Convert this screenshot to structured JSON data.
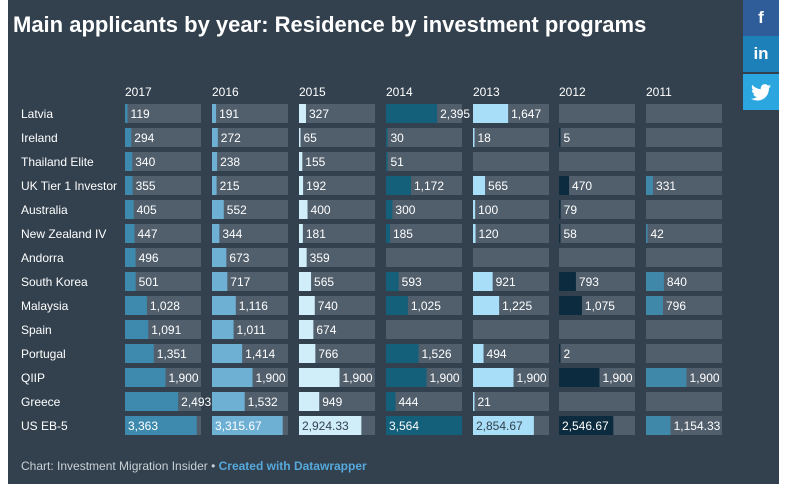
{
  "header": {
    "title": "Main applicants by year: Residence by investment programs"
  },
  "share": {
    "facebook": "f",
    "linkedin": "in"
  },
  "footer": {
    "source_text": "Chart: Investment Migration Insider • ",
    "link_text": "Created with Datawrapper"
  },
  "colors": {
    "background": "#33414e",
    "track": "#515e6b",
    "years": {
      "2017": "#3e8aae",
      "2016": "#6eb0d4",
      "2015": "#cfeefa",
      "2014": "#145f7a",
      "2013": "#a9def8",
      "2012": "#0c2b3e",
      "2011": "#3f88aa"
    }
  },
  "chart_data": {
    "type": "bar",
    "title": "Main applicants by year: Residence by investment programs",
    "orientation": "horizontal",
    "layout": "small-multiples-by-year",
    "xlim": [
      0,
      3564
    ],
    "categories": [
      "Latvia",
      "Ireland",
      "Thailand Elite",
      "UK Tier 1 Investor",
      "Australia",
      "New Zealand IV",
      "Andorra",
      "South Korea",
      "Malaysia",
      "Spain",
      "Portugal",
      "QIIP",
      "Greece",
      "US EB-5"
    ],
    "series": [
      {
        "name": "2017",
        "values": [
          119,
          294,
          340,
          355,
          405,
          447,
          496,
          501,
          1028,
          1091,
          1351,
          1900,
          2493,
          3363
        ],
        "labels": [
          "119",
          "294",
          "340",
          "355",
          "405",
          "447",
          "496",
          "501",
          "1,028",
          "1,091",
          "1,351",
          "1,900",
          "2,493",
          "3,363"
        ]
      },
      {
        "name": "2016",
        "values": [
          191,
          272,
          238,
          215,
          552,
          344,
          673,
          717,
          1116,
          1011,
          1414,
          1900,
          1532,
          3315.67
        ],
        "labels": [
          "191",
          "272",
          "238",
          "215",
          "552",
          "344",
          "673",
          "717",
          "1,116",
          "1,011",
          "1,414",
          "1,900",
          "1,532",
          "3,315.67"
        ]
      },
      {
        "name": "2015",
        "values": [
          327,
          65,
          155,
          192,
          400,
          181,
          359,
          565,
          740,
          674,
          766,
          1900,
          949,
          2924.33
        ],
        "labels": [
          "327",
          "65",
          "155",
          "192",
          "400",
          "181",
          "359",
          "565",
          "740",
          "674",
          "766",
          "1,900",
          "949",
          "2,924.33"
        ]
      },
      {
        "name": "2014",
        "values": [
          2395,
          30,
          51,
          1172,
          300,
          185,
          null,
          593,
          1025,
          null,
          1526,
          1900,
          444,
          3564
        ],
        "labels": [
          "2,395",
          "30",
          "51",
          "1,172",
          "300",
          "185",
          "",
          "593",
          "1,025",
          "",
          "1,526",
          "1,900",
          "444",
          "3,564"
        ]
      },
      {
        "name": "2013",
        "values": [
          1647,
          18,
          null,
          565,
          100,
          120,
          null,
          921,
          1225,
          null,
          494,
          1900,
          21,
          2854.67
        ],
        "labels": [
          "1,647",
          "18",
          "",
          "565",
          "100",
          "120",
          "",
          "921",
          "1,225",
          "",
          "494",
          "1,900",
          "21",
          "2,854.67"
        ]
      },
      {
        "name": "2012",
        "values": [
          null,
          5,
          null,
          470,
          79,
          58,
          null,
          793,
          1075,
          null,
          2,
          1900,
          null,
          2546.67
        ],
        "labels": [
          "",
          "5",
          "",
          "470",
          "79",
          "58",
          "",
          "793",
          "1,075",
          "",
          "2",
          "1,900",
          "",
          "2,546.67"
        ]
      },
      {
        "name": "2011",
        "values": [
          null,
          null,
          null,
          331,
          null,
          42,
          null,
          840,
          796,
          null,
          null,
          1900,
          null,
          1154.33
        ],
        "labels": [
          "",
          "",
          "",
          "331",
          "",
          "42",
          "",
          "840",
          "796",
          "",
          "",
          "1,900",
          "",
          "1,154.33"
        ]
      }
    ]
  }
}
